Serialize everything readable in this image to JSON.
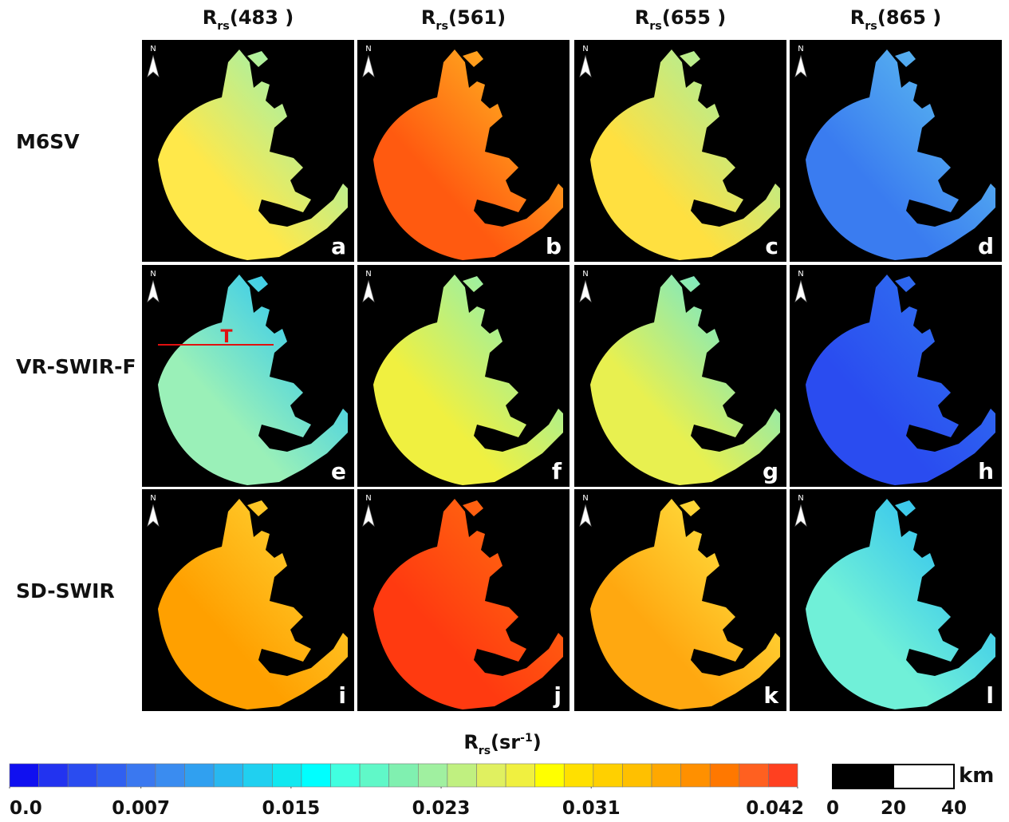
{
  "column_headers": [
    {
      "main": "R",
      "sub": "rs",
      "rest": "(483 )"
    },
    {
      "main": "R",
      "sub": "rs",
      "rest": "(561)"
    },
    {
      "main": "R",
      "sub": "rs",
      "rest": "(655 )"
    },
    {
      "main": "R",
      "sub": "rs",
      "rest": "(865 )"
    }
  ],
  "row_labels": [
    "M6SV",
    "VR-SWIR-F",
    "SD-SWIR"
  ],
  "panels": [
    [
      "a",
      "b",
      "c",
      "d"
    ],
    [
      "e",
      "f",
      "g",
      "h"
    ],
    [
      "i",
      "j",
      "k",
      "l"
    ]
  ],
  "north_label": "N",
  "transect_label": "T",
  "colorbar": {
    "title": {
      "main": "R",
      "sub": "rs",
      "rest": "(sr",
      "sup": "-1",
      "end": ")"
    },
    "range": [
      0,
      0.042
    ],
    "ticks": [
      {
        "value": 0,
        "label": "0.0"
      },
      0.007,
      0.015,
      0.023,
      0.031,
      0.042
    ],
    "colors": [
      "#1010f0",
      "#2233f0",
      "#2a4cf0",
      "#3060f0",
      "#3a78f0",
      "#3a8cf0",
      "#30a0f0",
      "#28b8f0",
      "#20d0f0",
      "#10e8f0",
      "#00ffff",
      "#40ffe0",
      "#60f8c8",
      "#80f0b0",
      "#a0f0a0",
      "#c0f080",
      "#e0f060",
      "#f0f040",
      "#ffff00",
      "#ffe000",
      "#ffd000",
      "#ffc000",
      "#ffa800",
      "#ff9000",
      "#ff7800",
      "#ff6020",
      "#ff4020"
    ]
  },
  "scale_bar": {
    "unit": "km",
    "range": [
      0,
      40
    ],
    "ticks": [
      0,
      20,
      40
    ]
  }
}
